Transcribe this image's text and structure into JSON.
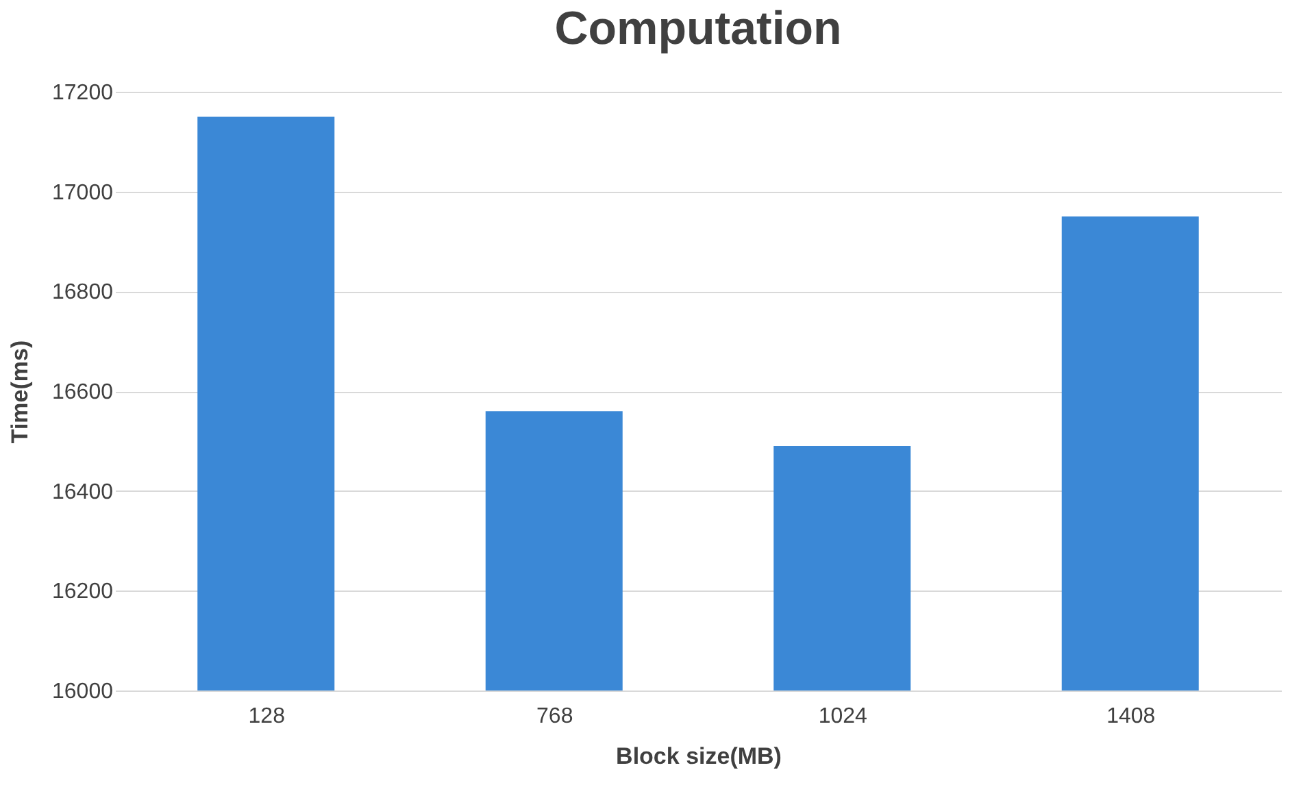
{
  "chart_data": {
    "type": "bar",
    "title": "Computation",
    "xlabel": "Block size(MB)",
    "ylabel": "Time(ms)",
    "categories": [
      "128",
      "768",
      "1024",
      "1408"
    ],
    "values": [
      17150,
      16560,
      16490,
      16950
    ],
    "color": "#3b88d6",
    "ylim": [
      16000,
      17200
    ],
    "yticks": [
      16000,
      16200,
      16400,
      16600,
      16800,
      17000,
      17200
    ],
    "grid": "y"
  }
}
